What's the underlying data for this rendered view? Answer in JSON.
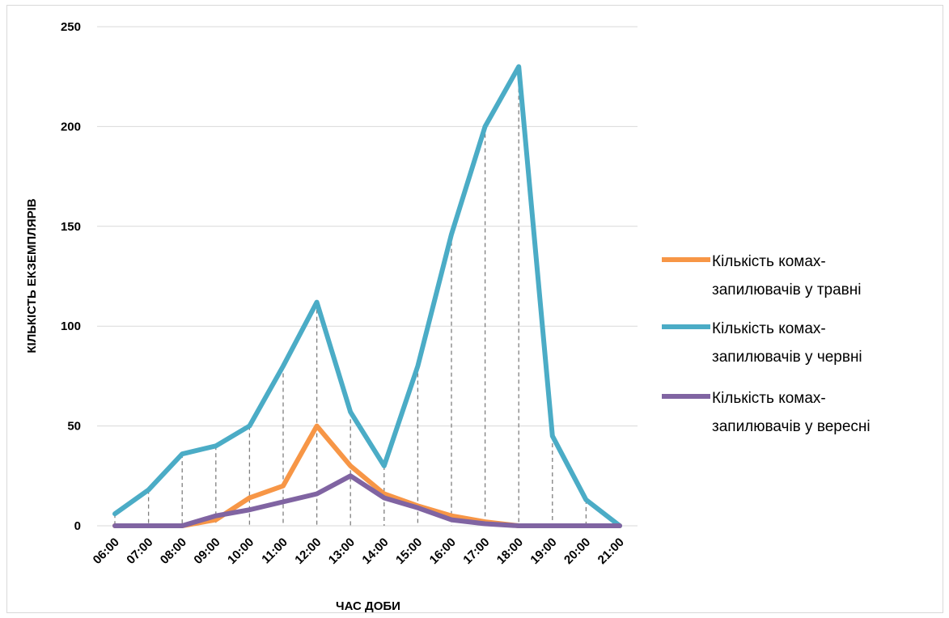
{
  "chart_data": {
    "type": "line",
    "title": "",
    "xlabel": "ЧАС ДОБИ",
    "ylabel": "КІЛЬКІСТЬ ЕКЗЕМПЛЯРІВ",
    "ylim": [
      0,
      250
    ],
    "yticks": [
      0,
      50,
      100,
      150,
      200,
      250
    ],
    "grid": "horizontal",
    "drop_lines": true,
    "legend_position": "right",
    "categories": [
      "06:00",
      "07:00",
      "08:00",
      "09:00",
      "10:00",
      "11:00",
      "12:00",
      "13:00",
      "14:00",
      "15:00",
      "16:00",
      "17:00",
      "18:00",
      "19:00",
      "20:00",
      "21:00"
    ],
    "series": [
      {
        "name": "Кількість комах-запилювачів у травні",
        "legend_lines": [
          "Кількість комах-",
          "запилювачів у травні"
        ],
        "color": "#f79646",
        "values": [
          0,
          0,
          0,
          3,
          14,
          20,
          50,
          30,
          16,
          10,
          5,
          2,
          0,
          0,
          0,
          0
        ]
      },
      {
        "name": "Кількість комах-запилювачів у червні",
        "legend_lines": [
          "Кількість комах-",
          "запилювачів у червні"
        ],
        "color": "#4bacc6",
        "values": [
          6,
          18,
          36,
          40,
          50,
          80,
          112,
          57,
          30,
          80,
          146,
          200,
          230,
          45,
          13,
          0
        ]
      },
      {
        "name": "Кількість комах-запилювачів у вересні",
        "legend_lines": [
          "Кількість комах-",
          "запилювачів у вересні"
        ],
        "color": "#8064a2",
        "values": [
          0,
          0,
          0,
          5,
          8,
          12,
          16,
          25,
          14,
          9,
          3,
          1,
          0,
          0,
          0,
          0
        ]
      }
    ]
  }
}
